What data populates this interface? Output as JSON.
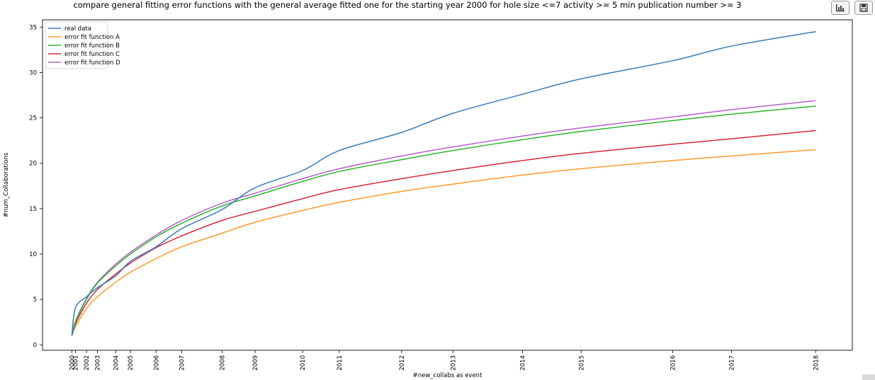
{
  "toolbar": {
    "buttons": [
      {
        "name": "chart-view-button",
        "icon": "bar-chart-icon"
      },
      {
        "name": "save-figure-button",
        "icon": "floppy-disk-icon"
      }
    ]
  },
  "chart_data": {
    "type": "line",
    "title": "compare general fitting error functions with the general average fitted one for the starting year 2000 for hole size <=7 activity >= 5 min publication number >= 3",
    "xlabel": "#new_collabs as event",
    "ylabel": "#num_Collaborations",
    "x_tick_labels": [
      "2000",
      "2001",
      "2002",
      "2003",
      "2004",
      "2005",
      "2006",
      "2007",
      "2008",
      "2009",
      "2010",
      "2011",
      "2012",
      "2013",
      "2014",
      "2015",
      "2016",
      "2017",
      "2018"
    ],
    "x": [
      0,
      1,
      4,
      7,
      12,
      16,
      23,
      30,
      41,
      50,
      63,
      73,
      90,
      104,
      123,
      139,
      164,
      180,
      203
    ],
    "ylim": [
      -0.6,
      35.8
    ],
    "y_ticks": [
      0,
      5,
      10,
      15,
      20,
      25,
      30,
      35
    ],
    "grid": false,
    "legend_position": "top-left",
    "series": [
      {
        "name": "real data",
        "color": "#3a7ab8",
        "values": [
          1.0,
          4.1,
          5.3,
          6.3,
          7.6,
          9.2,
          10.8,
          12.8,
          14.9,
          17.3,
          19.2,
          21.4,
          23.4,
          25.5,
          27.6,
          29.3,
          31.3,
          32.9,
          34.5
        ]
      },
      {
        "name": "error fit function A",
        "color": "#ff9a2e",
        "values": [
          1.0,
          2.0,
          4.0,
          5.3,
          6.9,
          8.0,
          9.5,
          10.8,
          12.3,
          13.5,
          14.8,
          15.7,
          16.9,
          17.7,
          18.7,
          19.4,
          20.3,
          20.8,
          21.5
        ]
      },
      {
        "name": "error fit function B",
        "color": "#2cb52c",
        "values": [
          1.0,
          2.5,
          5.0,
          6.8,
          8.7,
          10.0,
          11.9,
          13.4,
          15.3,
          16.4,
          18.0,
          19.1,
          20.4,
          21.4,
          22.6,
          23.5,
          24.7,
          25.4,
          26.3
        ]
      },
      {
        "name": "error fit function C",
        "color": "#d62839",
        "values": [
          1.0,
          2.3,
          4.6,
          6.1,
          7.8,
          9.0,
          10.7,
          12.0,
          13.7,
          14.7,
          16.1,
          17.1,
          18.3,
          19.2,
          20.3,
          21.1,
          22.1,
          22.7,
          23.6
        ]
      },
      {
        "name": "error fit function D",
        "color": "#b462c9",
        "values": [
          1.0,
          2.6,
          5.1,
          6.9,
          8.9,
          10.2,
          12.1,
          13.7,
          15.6,
          16.7,
          18.3,
          19.4,
          20.8,
          21.8,
          23.0,
          23.9,
          25.1,
          25.9,
          26.9
        ]
      }
    ]
  }
}
